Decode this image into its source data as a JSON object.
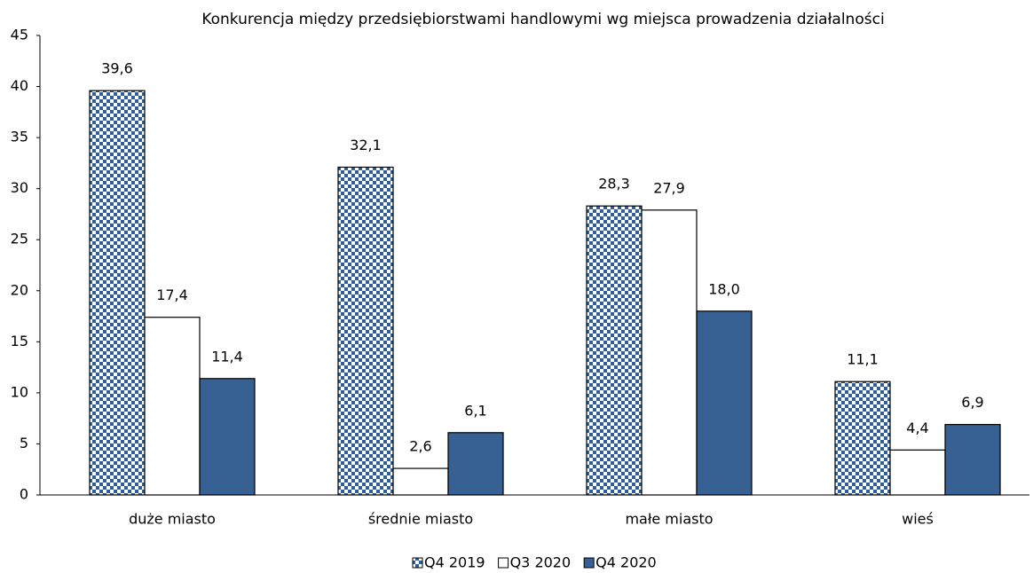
{
  "chart_data": {
    "type": "bar",
    "title": "Konkurencja między przedsiębiorstwami handlowymi wg miejsca prowadzenia działalności",
    "categories": [
      "duże miasto",
      "średnie miasto",
      "małe miasto",
      "wieś"
    ],
    "series": [
      {
        "name": "Q4 2019",
        "color": "#2f5f98",
        "fill_style": "checkerboard",
        "values": [
          39.6,
          32.1,
          28.3,
          11.1
        ],
        "value_labels": [
          "39,6",
          "32,1",
          "28,3",
          "11,1"
        ]
      },
      {
        "name": "Q3 2020",
        "color": "#ffffff",
        "values": [
          17.4,
          2.6,
          27.9,
          4.4
        ],
        "value_labels": [
          "17,4",
          "2,6",
          "27,9",
          "4,4"
        ]
      },
      {
        "name": "Q4 2020",
        "color": "#386193",
        "values": [
          11.4,
          6.1,
          18.0,
          6.9
        ],
        "value_labels": [
          "11,4",
          "6,1",
          "18,0",
          "6,9"
        ]
      }
    ],
    "ylim": [
      0,
      45
    ],
    "yticks": [
      0,
      5,
      10,
      15,
      20,
      25,
      30,
      35,
      40,
      45
    ],
    "grid": false,
    "legend": "bottom"
  }
}
